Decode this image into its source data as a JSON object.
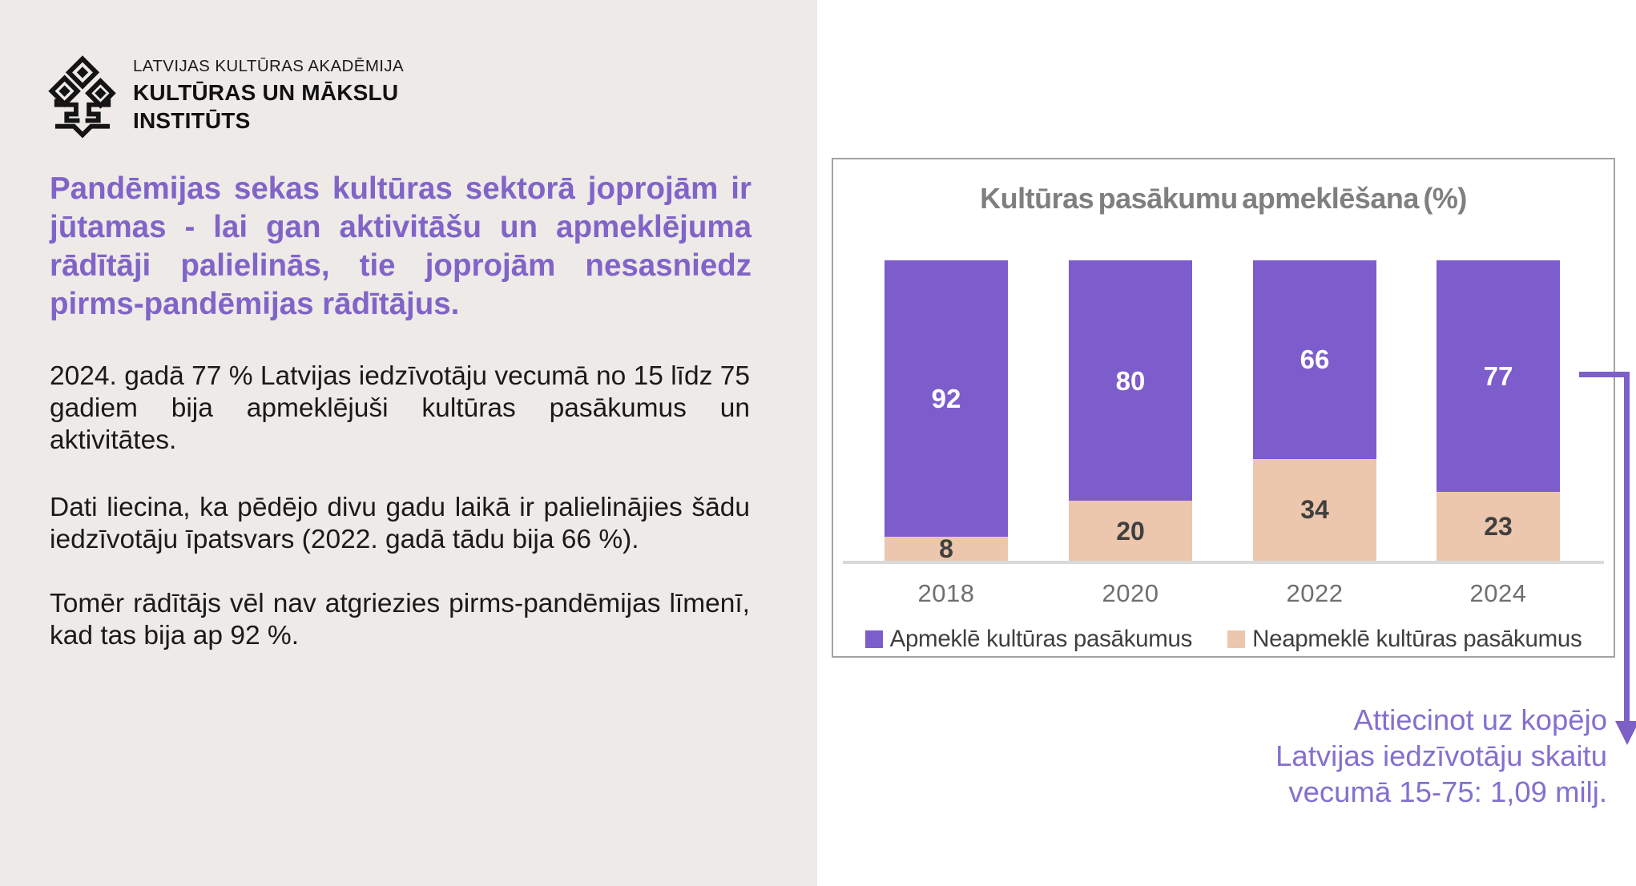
{
  "logo": {
    "org_line": "LATVIJAS KULTŪRAS AKADĒMIJA",
    "name_line1": "KULTŪRAS UN MĀKSLU",
    "name_line2": "INSTITŪTS"
  },
  "intro": {
    "heading": "Pandēmijas sekas kultūras sektorā joprojām ir jūtamas - lai gan aktivitāšu un apmeklējuma rādītāji palielinās, tie joprojām nesasniedz pirms-pandēmijas rādītājus.",
    "paragraphs": [
      "2024. gadā 77 % Latvijas iedzīvotāju vecumā no 15 līdz 75 gadiem bija apmeklējuši kultūras pasākumus un aktivitātes.",
      "Dati liecina, ka pēdējo divu gadu laikā ir palielinājies šādu iedzīvotāju īpatsvars (2022. gadā tādu bija 66 %).",
      "Tomēr rādītājs vēl nav atgriezies pirms-pandēmijas līmenī, kad tas bija ap 92 %."
    ]
  },
  "chart_data": {
    "type": "bar",
    "stacked": true,
    "title": "Kultūras pasākumu apmeklēšana (%)",
    "categories": [
      "2018",
      "2020",
      "2022",
      "2024"
    ],
    "series": [
      {
        "name": "Apmeklē kultūras pasākumus",
        "color": "#7D5CCB",
        "values": [
          92,
          80,
          66,
          77
        ]
      },
      {
        "name": "Neapmeklē kultūras pasākumus",
        "color": "#ECC7AE",
        "values": [
          8,
          20,
          34,
          23
        ]
      }
    ],
    "ylim": [
      0,
      100
    ],
    "grid": false,
    "legend_position": "bottom"
  },
  "annotation": {
    "lines": [
      "Attiecinot uz kopējo",
      "Latvijas iedzīvotāju skaitu",
      "vecumā 15-75: 1,09 milj."
    ]
  },
  "colors": {
    "left_panel_bg": "#EDEAE8",
    "heading_purple": "#8164C7",
    "body_text": "#1A1A1A",
    "bar_purple": "#7D5CCB",
    "bar_tan": "#ECC7AE",
    "chart_title_gray": "#7F7F7F",
    "axis_gray": "#D9D9D9",
    "panel_border_gray": "#A3A3A3",
    "year_label_gray": "#6F6F6F",
    "legend_text": "#3F3F3F",
    "value_label_on_purple": "#FFFFFF",
    "value_label_on_tan": "#3F3F3F",
    "arrow_purple": "#7D5FC8",
    "annotation_purple": "#8470CE"
  }
}
